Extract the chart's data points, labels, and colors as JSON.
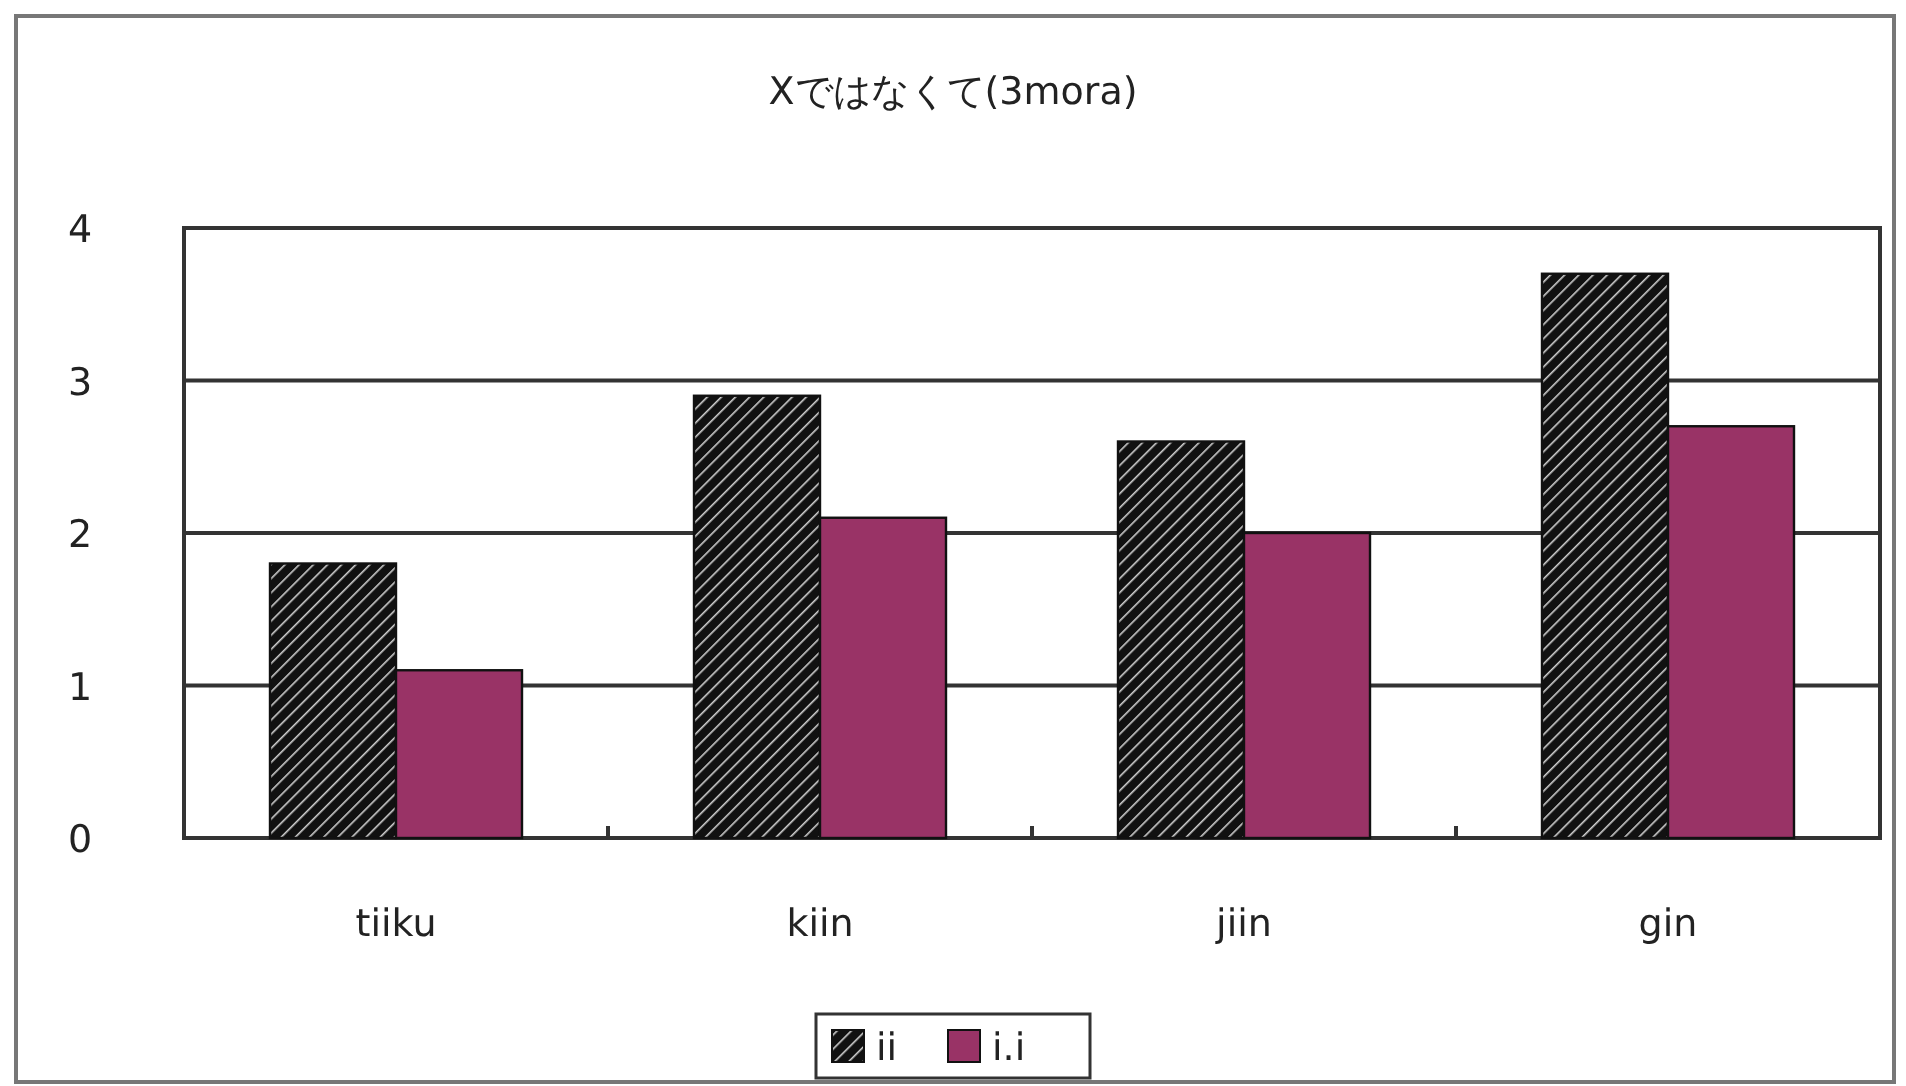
{
  "chart_data": {
    "type": "bar",
    "title": "Xではなくて(3mora)",
    "categories": [
      "tiiku",
      "kiin",
      "jiin",
      "gin"
    ],
    "series": [
      {
        "name": "ii",
        "color": "#111111",
        "values": [
          1.8,
          2.9,
          2.6,
          3.7
        ]
      },
      {
        "name": "i.i",
        "color": "#993366",
        "values": [
          1.1,
          2.1,
          2.0,
          2.7
        ]
      }
    ],
    "ylim": [
      0,
      4
    ],
    "yticks": [
      0,
      1,
      2,
      3,
      4
    ],
    "grid": "y",
    "legend": "bottom"
  }
}
